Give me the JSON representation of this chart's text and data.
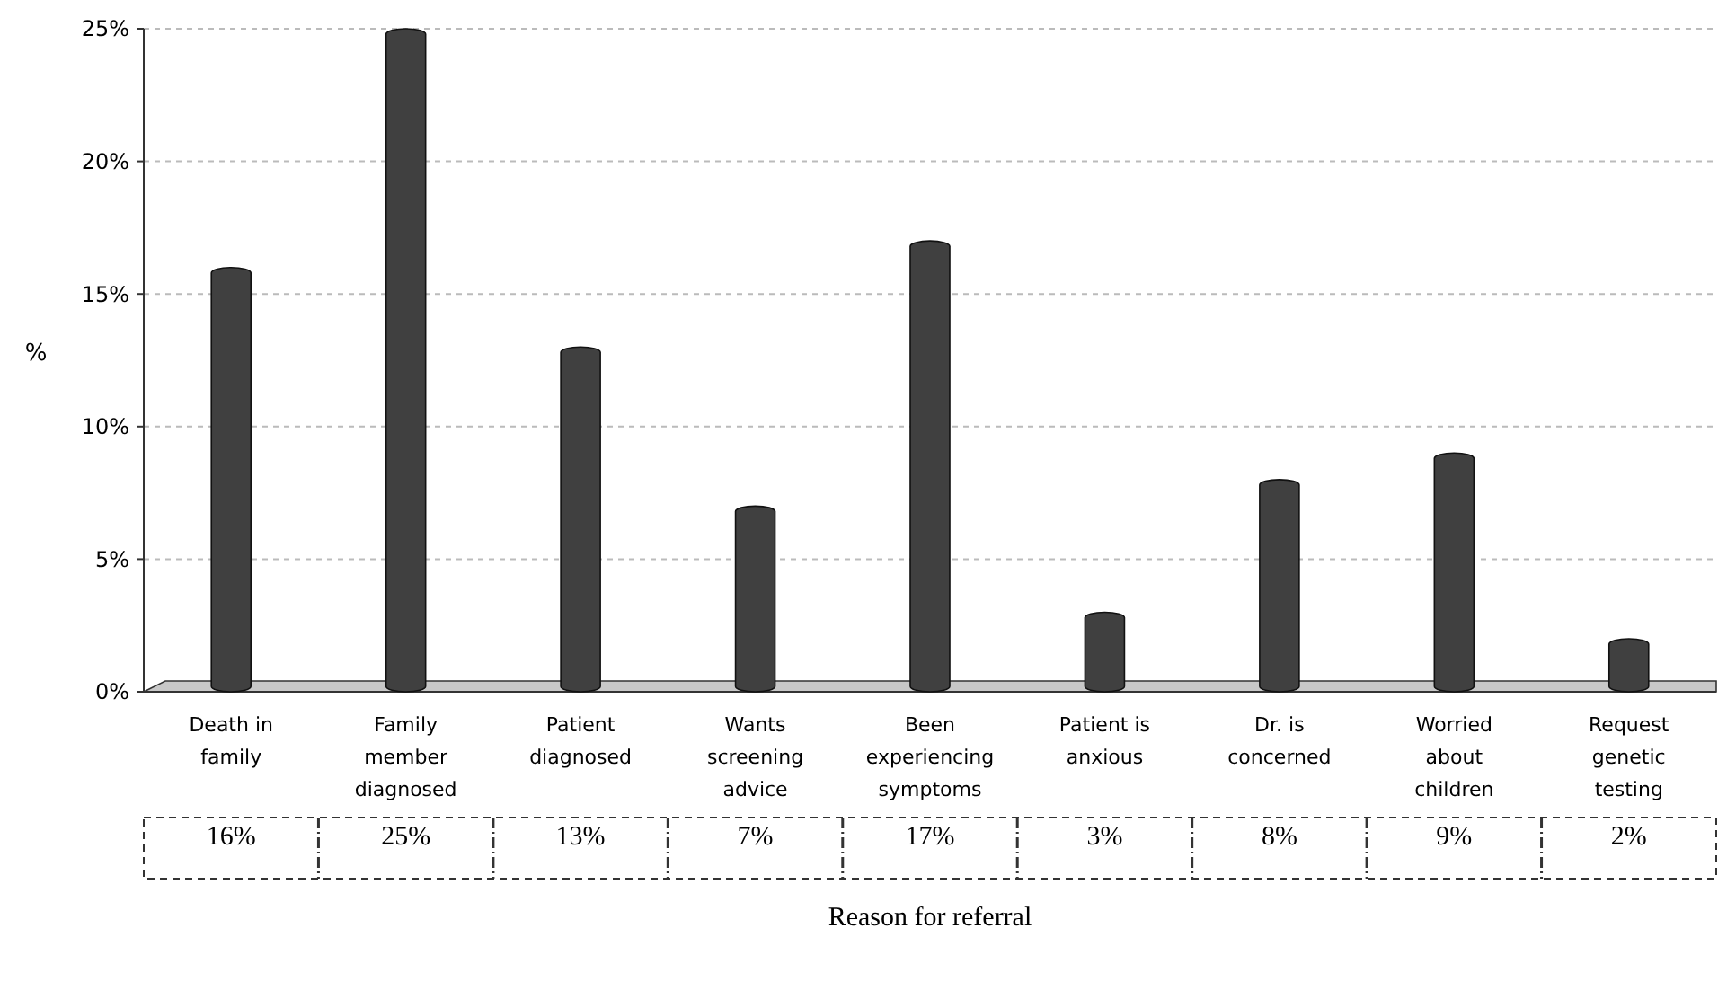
{
  "chart_data": {
    "type": "bar",
    "xlabel": "Reason for referral",
    "ylabel": "%",
    "categories": [
      "Death in family",
      "Family member diagnosed",
      "Patient diagnosed",
      "Wants screening advice",
      "Been experiencing symptoms",
      "Patient is anxious",
      "Dr. is concerned",
      "Worried about children",
      "Request genetic testing"
    ],
    "values": [
      16,
      25,
      13,
      7,
      17,
      3,
      8,
      9,
      2
    ],
    "value_labels": [
      "16%",
      "25%",
      "13%",
      "7%",
      "17%",
      "3%",
      "8%",
      "9%",
      "2%"
    ],
    "color": "#404040",
    "ylim": [
      0,
      25
    ],
    "yticks": [
      {
        "value": 0,
        "label": "0%"
      },
      {
        "value": 5,
        "label": "5%"
      },
      {
        "value": 10,
        "label": "10%"
      },
      {
        "value": 15,
        "label": "15%"
      },
      {
        "value": 20,
        "label": "20%"
      },
      {
        "value": 25,
        "label": "25%"
      }
    ],
    "grid": "y"
  }
}
